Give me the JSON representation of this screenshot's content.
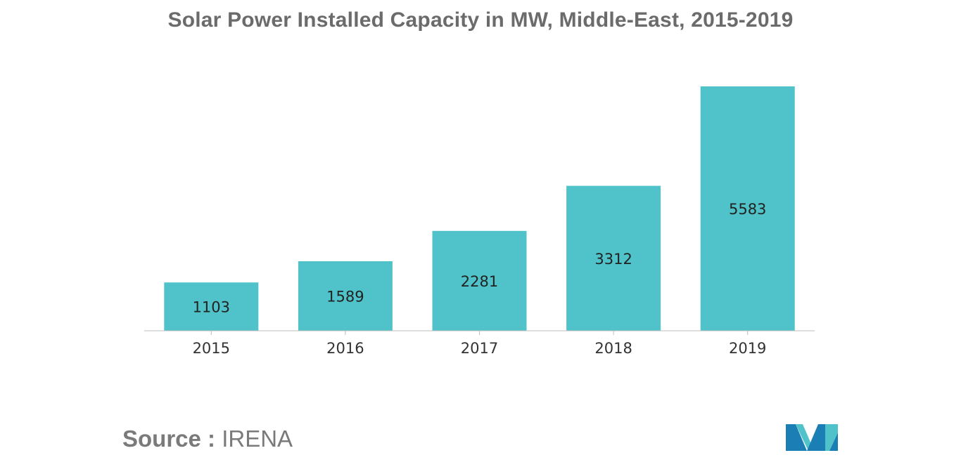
{
  "title": "Solar Power Installed Capacity in MW, Middle-East, 2015-2019",
  "source": {
    "prefix": "Source :",
    "value": "IRENA"
  },
  "logo": {
    "icon": "mordor-intelligence-logo-icon",
    "colors": [
      "#1b7fb5",
      "#4fc3c9"
    ]
  },
  "colors": {
    "bar": "#4fc3c9",
    "title": "#6b6b6b",
    "axis": "#bdbdbd"
  },
  "chart_data": {
    "type": "bar",
    "title": "Solar Power Installed Capacity in MW, Middle-East, 2015-2019",
    "xlabel": "",
    "ylabel": "",
    "categories": [
      "2015",
      "2016",
      "2017",
      "2018",
      "2019"
    ],
    "values": [
      1103,
      1589,
      2281,
      3312,
      5583
    ],
    "data_labels": [
      "1103",
      "1589",
      "2281",
      "3312",
      "5583"
    ],
    "ylim": [
      0,
      5583
    ],
    "grid": false,
    "legend": "none"
  }
}
